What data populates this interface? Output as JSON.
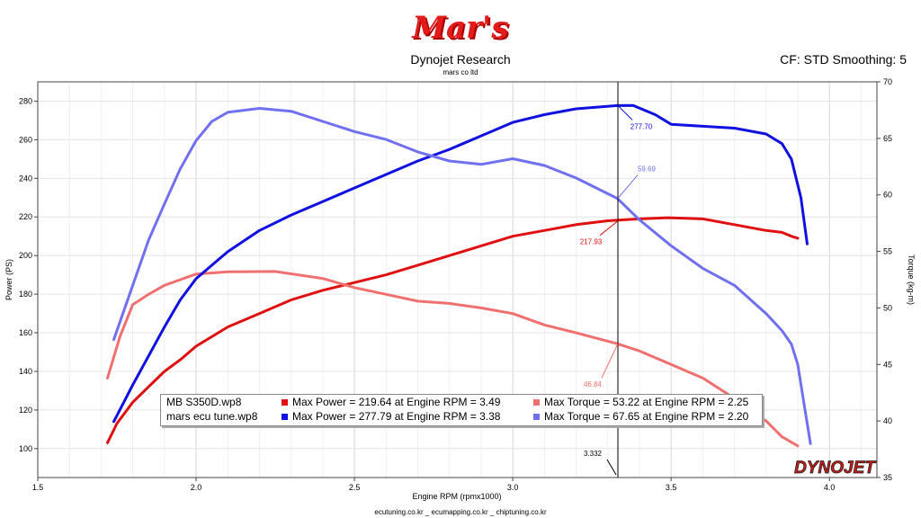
{
  "header": {
    "logo_text": "Mar's",
    "title": "Dynojet Research",
    "subtitle": "mars co ltd",
    "correction": "CF: STD Smoothing: 5"
  },
  "footer": "ecutuning.co.kr _ ecumapping.co.kr _ chiptuning.co.kr",
  "brand": "DYNOJET",
  "colors": {
    "stock_power": "#e01010",
    "stock_torque": "#f07070",
    "tuned_power": "#1010e0",
    "tuned_torque": "#7070f0"
  },
  "legend": [
    {
      "file": "MB S350D.wp8",
      "power_text": "Max Power = 219.64 at Engine RPM = 3.49",
      "torque_text": "Max Torque = 53.22 at Engine RPM = 2.25",
      "power_color": "#e01010",
      "torque_color": "#f07070"
    },
    {
      "file": "mars ecu tune.wp8",
      "power_text": "Max Power = 277.79 at Engine RPM = 3.38",
      "torque_text": "Max Torque = 67.65 at Engine RPM = 2.20",
      "power_color": "#1010e0",
      "torque_color": "#7070f0"
    }
  ],
  "chart_data": {
    "type": "line",
    "xlabel": "Engine RPM (rpmx1000)",
    "ylabel": "Power (PS)",
    "y2label": "Torque (kg-m)",
    "xlim": [
      1.5,
      4.15
    ],
    "ylim": [
      85,
      290
    ],
    "y2lim": [
      35,
      70
    ],
    "x_ticks": [
      "1.5",
      "2.0",
      "2.5",
      "3.0",
      "3.5",
      "4.0"
    ],
    "y_ticks": [
      "100",
      "120",
      "140",
      "160",
      "180",
      "200",
      "220",
      "240",
      "260",
      "280"
    ],
    "y2_ticks": [
      "35",
      "40",
      "45",
      "50",
      "55",
      "60",
      "65",
      "70"
    ],
    "grid": true,
    "cursor": {
      "x": 3.332,
      "label": "3.332"
    },
    "series": [
      {
        "name": "MB S350D.wp8",
        "measure": "power",
        "axis": "left",
        "color": "#e01010",
        "cursor_label": "217.93",
        "cursor_value": 217.93,
        "x": [
          1.72,
          1.75,
          1.8,
          1.85,
          1.9,
          1.95,
          2.0,
          2.1,
          2.2,
          2.3,
          2.4,
          2.5,
          2.6,
          2.7,
          2.8,
          2.9,
          3.0,
          3.1,
          3.2,
          3.3,
          3.4,
          3.49,
          3.6,
          3.7,
          3.8,
          3.85,
          3.88,
          3.9
        ],
        "y": [
          103,
          113,
          124,
          132,
          140,
          146,
          153,
          163,
          170,
          177,
          182,
          186,
          190,
          195,
          200,
          205,
          210,
          213,
          216,
          218,
          219,
          219.6,
          219,
          216,
          213,
          212,
          210,
          209
        ]
      },
      {
        "name": "MB S350D.wp8",
        "measure": "torque",
        "axis": "right",
        "color": "#f07070",
        "cursor_label": "46.84",
        "cursor_value": 46.84,
        "x": [
          1.72,
          1.76,
          1.8,
          1.85,
          1.9,
          1.95,
          2.0,
          2.05,
          2.1,
          2.25,
          2.4,
          2.5,
          2.6,
          2.7,
          2.8,
          2.9,
          3.0,
          3.1,
          3.2,
          3.33,
          3.4,
          3.5,
          3.6,
          3.7,
          3.75,
          3.8,
          3.85,
          3.9
        ],
        "y": [
          43.8,
          47.5,
          50.3,
          51.2,
          52.0,
          52.5,
          53.0,
          53.1,
          53.2,
          53.22,
          52.6,
          51.8,
          51.2,
          50.6,
          50.4,
          50.0,
          49.5,
          48.5,
          47.8,
          46.84,
          46.2,
          45.0,
          43.8,
          42.0,
          41.0,
          40.0,
          38.6,
          37.8
        ]
      },
      {
        "name": "mars ecu tune.wp8",
        "measure": "power",
        "axis": "left",
        "color": "#1010e0",
        "cursor_label": "277.70",
        "cursor_value": 277.7,
        "x": [
          1.74,
          1.8,
          1.85,
          1.9,
          1.95,
          2.0,
          2.1,
          2.2,
          2.3,
          2.4,
          2.5,
          2.6,
          2.7,
          2.8,
          2.9,
          3.0,
          3.1,
          3.2,
          3.33,
          3.38,
          3.45,
          3.5,
          3.6,
          3.7,
          3.8,
          3.85,
          3.88,
          3.91,
          3.93
        ],
        "y": [
          114,
          133,
          148,
          163,
          177,
          188,
          202,
          213,
          221,
          228,
          235,
          242,
          249,
          255,
          262,
          269,
          273,
          276,
          277.7,
          277.8,
          273,
          268,
          267,
          266,
          263,
          258,
          250,
          230,
          206
        ]
      },
      {
        "name": "mars ecu tune.wp8",
        "measure": "torque",
        "axis": "right",
        "color": "#7070f0",
        "cursor_label": "59.69",
        "cursor_value": 59.69,
        "x": [
          1.74,
          1.8,
          1.85,
          1.9,
          1.95,
          2.0,
          2.05,
          2.1,
          2.2,
          2.3,
          2.4,
          2.5,
          2.6,
          2.7,
          2.8,
          2.9,
          3.0,
          3.1,
          3.2,
          3.33,
          3.4,
          3.5,
          3.6,
          3.7,
          3.8,
          3.85,
          3.88,
          3.9,
          3.92,
          3.94
        ],
        "y": [
          47.2,
          52.0,
          56.0,
          59.2,
          62.3,
          64.8,
          66.5,
          67.3,
          67.65,
          67.4,
          66.5,
          65.6,
          64.9,
          63.8,
          63.0,
          62.7,
          63.2,
          62.6,
          61.5,
          59.69,
          57.8,
          55.5,
          53.5,
          52.0,
          49.5,
          48.0,
          46.8,
          45.0,
          41.5,
          38.0
        ]
      }
    ]
  }
}
